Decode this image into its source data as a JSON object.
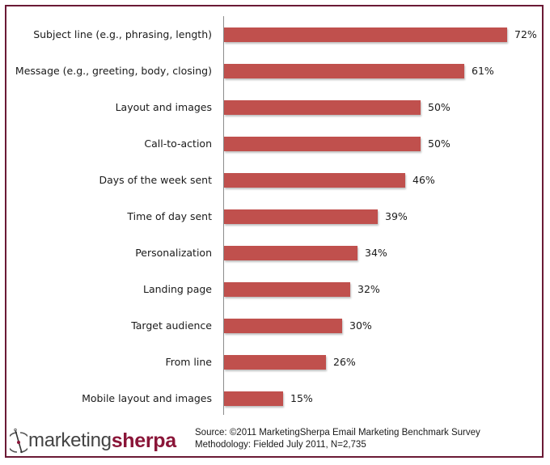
{
  "chart_data": {
    "type": "bar",
    "orientation": "horizontal",
    "title": "",
    "xlabel": "",
    "ylabel": "",
    "categories": [
      "Subject line (e.g., phrasing, length)",
      "Message (e.g., greeting, body, closing)",
      "Layout and images",
      "Call-to-action",
      "Days of the week sent",
      "Time of day sent",
      "Personalization",
      "Landing page",
      "Target audience",
      "From line",
      "Mobile layout and images"
    ],
    "values": [
      72,
      61,
      50,
      50,
      46,
      39,
      34,
      32,
      30,
      26,
      15
    ],
    "value_labels": [
      "72%",
      "61%",
      "50%",
      "50%",
      "46%",
      "39%",
      "34%",
      "32%",
      "30%",
      "26%",
      "15%"
    ],
    "unit": "%",
    "xlim": [
      0,
      72
    ],
    "grid": false,
    "legend": null,
    "bar_color": "#c0504d"
  },
  "footer": {
    "logo_part1": "marketing",
    "logo_part2": "sherpa",
    "source_line": "Source: ©2011 MarketingSherpa Email Marketing Benchmark Survey",
    "methodology_line": "Methodology: Fielded July 2011, N=2,735"
  },
  "colors": {
    "border": "#6b1a35",
    "bar": "#c0504d",
    "brand": "#8a1538"
  }
}
